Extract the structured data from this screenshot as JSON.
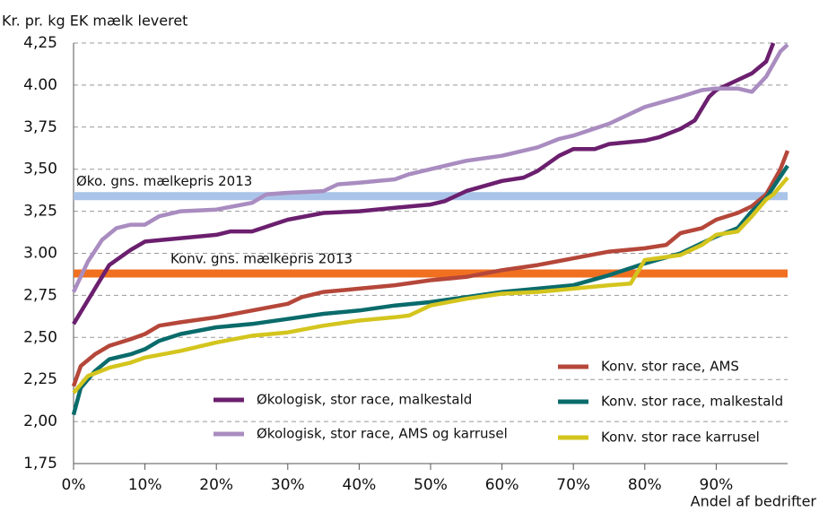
{
  "chart_data": {
    "type": "line",
    "y_label": "Kr. pr. kg EK mælk leveret",
    "x_label": "Andel af bedrifter",
    "xlim": [
      0,
      100
    ],
    "xticks": [
      {
        "value": 0,
        "label": "0%"
      },
      {
        "value": 10,
        "label": "10%"
      },
      {
        "value": 20,
        "label": "20%"
      },
      {
        "value": 30,
        "label": "30%"
      },
      {
        "value": 40,
        "label": "40%"
      },
      {
        "value": 50,
        "label": "50%"
      },
      {
        "value": 60,
        "label": "60%"
      },
      {
        "value": 70,
        "label": "70%"
      },
      {
        "value": 80,
        "label": "80%"
      },
      {
        "value": 90,
        "label": "90%"
      }
    ],
    "ylim": [
      1.75,
      4.25
    ],
    "yticks": [
      {
        "value": 1.75,
        "label": "1,75"
      },
      {
        "value": 2.0,
        "label": "2,00"
      },
      {
        "value": 2.25,
        "label": "2,25"
      },
      {
        "value": 2.5,
        "label": "2,50"
      },
      {
        "value": 2.75,
        "label": "2,75"
      },
      {
        "value": 3.0,
        "label": "3.00"
      },
      {
        "value": 3.25,
        "label": "3,25"
      },
      {
        "value": 3.5,
        "label": "3,50"
      },
      {
        "value": 3.75,
        "label": "3,75"
      },
      {
        "value": 4.0,
        "label": "4.00"
      },
      {
        "value": 4.25,
        "label": "4,25"
      }
    ],
    "grid": true,
    "reference_lines": [
      {
        "label": "Øko. gns. mælkepris 2013",
        "value": 3.34,
        "color": "#a9c4e8"
      },
      {
        "label": "Konv. gns. mælkepris 2013",
        "value": 2.88,
        "color": "#f07020"
      }
    ],
    "series": [
      {
        "name": "Økologisk, stor race, malkestald",
        "color": "#6b1f6e",
        "x": [
          0,
          2,
          5,
          8,
          10,
          15,
          20,
          22,
          25,
          30,
          35,
          40,
          45,
          50,
          52,
          55,
          60,
          63,
          65,
          68,
          70,
          73,
          75,
          80,
          82,
          85,
          87,
          89,
          90,
          95,
          97,
          98
        ],
        "values": [
          2.58,
          2.72,
          2.93,
          3.02,
          3.07,
          3.09,
          3.11,
          3.13,
          3.13,
          3.2,
          3.24,
          3.25,
          3.27,
          3.29,
          3.31,
          3.37,
          3.43,
          3.45,
          3.49,
          3.58,
          3.62,
          3.62,
          3.65,
          3.67,
          3.69,
          3.74,
          3.79,
          3.93,
          3.97,
          4.07,
          4.14,
          4.25
        ]
      },
      {
        "name": "Økologisk, stor race, AMS og karrusel",
        "color": "#a98cc0",
        "x": [
          0,
          2,
          4,
          6,
          8,
          10,
          12,
          15,
          20,
          25,
          27,
          30,
          35,
          37,
          40,
          45,
          47,
          50,
          55,
          60,
          63,
          65,
          68,
          70,
          75,
          80,
          85,
          88,
          90,
          93,
          95,
          97,
          99,
          100
        ],
        "values": [
          2.77,
          2.95,
          3.08,
          3.15,
          3.17,
          3.17,
          3.22,
          3.25,
          3.26,
          3.3,
          3.35,
          3.36,
          3.37,
          3.41,
          3.42,
          3.44,
          3.47,
          3.5,
          3.55,
          3.58,
          3.61,
          3.63,
          3.68,
          3.7,
          3.77,
          3.87,
          3.93,
          3.97,
          3.98,
          3.98,
          3.96,
          4.05,
          4.2,
          4.24
        ]
      },
      {
        "name": "Konv. stor race, AMS",
        "color": "#b5473a",
        "x": [
          0,
          1,
          3,
          5,
          8,
          10,
          12,
          15,
          20,
          25,
          30,
          32,
          35,
          40,
          45,
          50,
          55,
          60,
          65,
          70,
          75,
          80,
          83,
          85,
          88,
          90,
          93,
          95,
          97,
          99,
          100
        ],
        "values": [
          2.21,
          2.33,
          2.4,
          2.45,
          2.49,
          2.52,
          2.57,
          2.59,
          2.62,
          2.66,
          2.7,
          2.74,
          2.77,
          2.79,
          2.81,
          2.84,
          2.86,
          2.9,
          2.93,
          2.97,
          3.01,
          3.03,
          3.05,
          3.12,
          3.15,
          3.2,
          3.24,
          3.28,
          3.35,
          3.5,
          3.61
        ]
      },
      {
        "name": "Konv. stor race, malkestald",
        "color": "#0a6b6b",
        "x": [
          0,
          1,
          3,
          5,
          8,
          10,
          12,
          15,
          20,
          25,
          30,
          35,
          40,
          45,
          50,
          55,
          60,
          65,
          70,
          75,
          80,
          85,
          90,
          93,
          95,
          97,
          100
        ],
        "values": [
          2.04,
          2.2,
          2.3,
          2.37,
          2.4,
          2.43,
          2.48,
          2.52,
          2.56,
          2.58,
          2.61,
          2.64,
          2.66,
          2.69,
          2.71,
          2.74,
          2.77,
          2.79,
          2.81,
          2.87,
          2.94,
          3.0,
          3.1,
          3.15,
          3.25,
          3.33,
          3.52
        ]
      },
      {
        "name": "Konv. stor race karrusel",
        "color": "#d4c51e",
        "x": [
          0,
          2,
          5,
          8,
          10,
          15,
          20,
          25,
          30,
          35,
          40,
          45,
          47,
          50,
          55,
          60,
          65,
          70,
          75,
          78,
          80,
          85,
          88,
          90,
          93,
          95,
          97,
          98,
          100
        ],
        "values": [
          2.17,
          2.27,
          2.32,
          2.35,
          2.38,
          2.42,
          2.47,
          2.51,
          2.53,
          2.57,
          2.6,
          2.62,
          2.63,
          2.69,
          2.73,
          2.76,
          2.77,
          2.79,
          2.81,
          2.82,
          2.96,
          2.99,
          3.05,
          3.11,
          3.13,
          3.22,
          3.32,
          3.35,
          3.45
        ]
      }
    ]
  }
}
